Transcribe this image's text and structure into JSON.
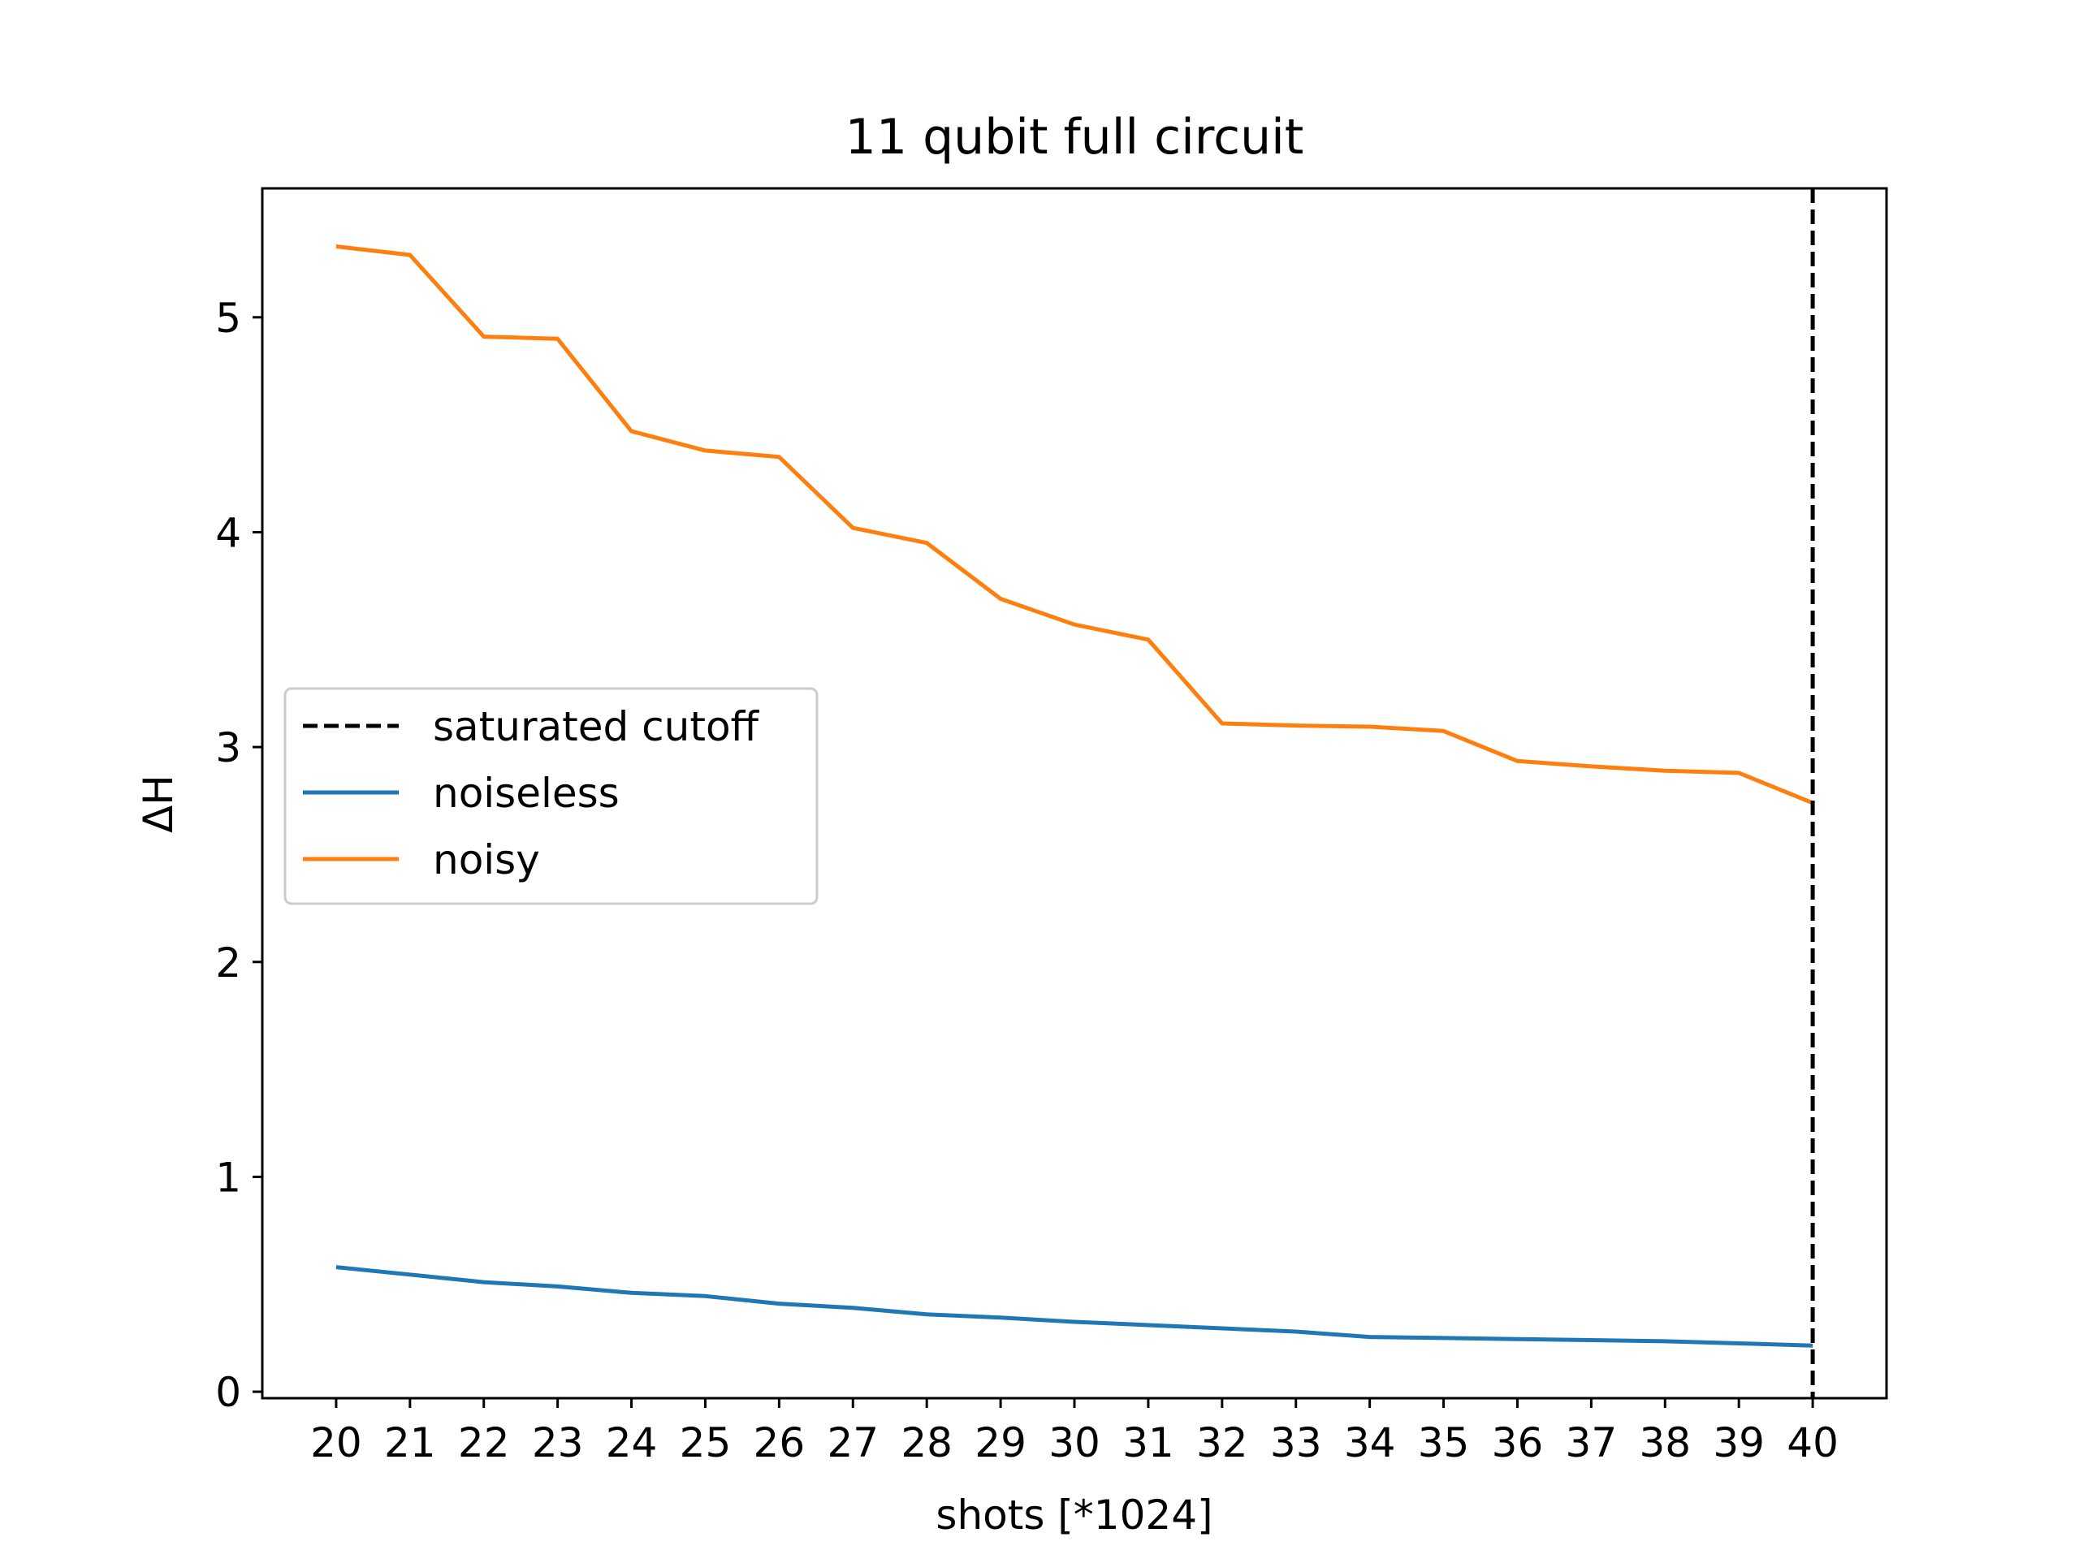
{
  "chart_data": {
    "type": "line",
    "title": "11 qubit full circuit",
    "xlabel": "shots [*1024]",
    "ylabel": "ΔH",
    "xlim": [
      19,
      41
    ],
    "ylim": [
      -0.03,
      5.6
    ],
    "xticks": [
      20,
      21,
      22,
      23,
      24,
      25,
      26,
      27,
      28,
      29,
      30,
      31,
      32,
      33,
      34,
      35,
      36,
      37,
      38,
      39,
      40
    ],
    "yticks": [
      0,
      1,
      2,
      3,
      4,
      5
    ],
    "grid": false,
    "legend_position": "center-left",
    "x": [
      20,
      21,
      22,
      23,
      24,
      25,
      26,
      27,
      28,
      29,
      30,
      31,
      32,
      33,
      34,
      35,
      36,
      37,
      38,
      39,
      40
    ],
    "series": [
      {
        "name": "noiseless",
        "color": "#1f77b4",
        "values": [
          0.58,
          0.545,
          0.51,
          0.49,
          0.46,
          0.445,
          0.41,
          0.39,
          0.36,
          0.345,
          0.325,
          0.31,
          0.295,
          0.28,
          0.255,
          0.25,
          0.245,
          0.24,
          0.235,
          0.225,
          0.215
        ]
      },
      {
        "name": "noisy",
        "color": "#ff7f0e",
        "values": [
          5.33,
          5.29,
          4.91,
          4.9,
          4.47,
          4.38,
          4.35,
          4.02,
          3.95,
          3.69,
          3.57,
          3.5,
          3.11,
          3.1,
          3.095,
          3.075,
          2.935,
          2.91,
          2.89,
          2.88,
          2.74
        ]
      }
    ],
    "vlines": [
      {
        "name": "saturated cutoff",
        "x": 40,
        "color": "#000000",
        "style": "dashed"
      }
    ]
  }
}
